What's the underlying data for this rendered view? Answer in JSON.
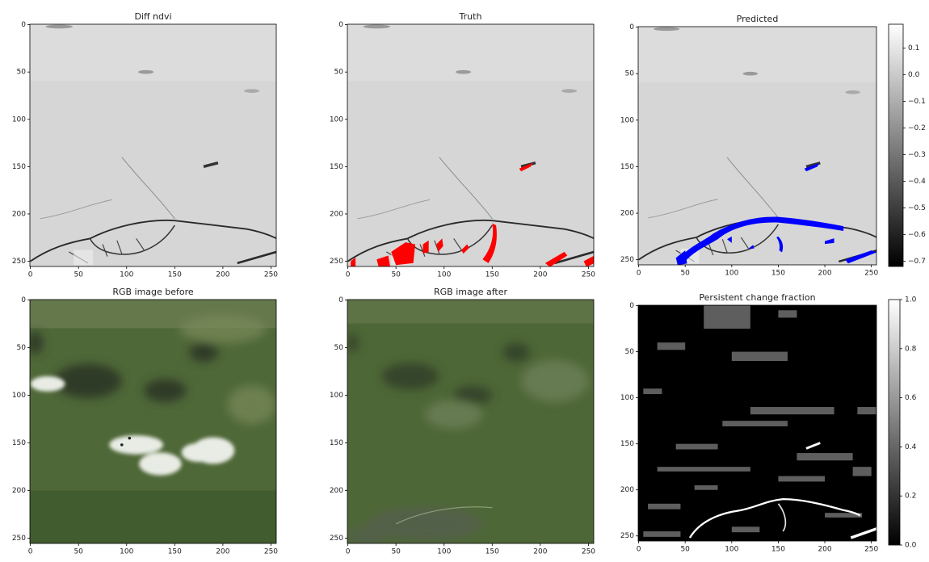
{
  "chart_data": [
    {
      "type": "image",
      "title": "Diff ndvi",
      "xlim": [
        -0.5,
        255.5
      ],
      "ylim": [
        255.5,
        -0.5
      ],
      "xticks": [
        0,
        50,
        100,
        150,
        200,
        250
      ],
      "yticks": [
        0,
        50,
        100,
        150,
        200,
        250
      ]
    },
    {
      "type": "image",
      "title": "Truth",
      "xlim": [
        -0.5,
        255.5
      ],
      "ylim": [
        255.5,
        -0.5
      ],
      "xticks": [
        0,
        50,
        100,
        150,
        200,
        250
      ],
      "yticks": [
        0,
        50,
        100,
        150,
        200,
        250
      ],
      "overlay_color": "#ff0000"
    },
    {
      "type": "image",
      "title": "Predicted",
      "xlim": [
        -0.5,
        255.5
      ],
      "ylim": [
        255.5,
        -0.5
      ],
      "xticks": [
        0,
        50,
        100,
        150,
        200,
        250
      ],
      "yticks": [
        0,
        50,
        100,
        150,
        200,
        250
      ],
      "overlay_color": "#0000ff",
      "colorbar": {
        "cmap": "gray",
        "lim": [
          -0.72,
          0.19
        ],
        "ticks": [
          0.1,
          {
            "value": 0.0,
            "label": "0.0"
          },
          {
            "value": -0.1,
            "label": "−0.1"
          },
          {
            "value": -0.2,
            "label": "−0.2"
          },
          {
            "value": -0.3,
            "label": "−0.3"
          },
          {
            "value": -0.4,
            "label": "−0.4"
          },
          {
            "value": -0.5,
            "label": "−0.5"
          },
          {
            "value": -0.6,
            "label": "−0.6"
          },
          {
            "value": -0.7,
            "label": "−0.7"
          }
        ]
      }
    },
    {
      "type": "image",
      "title": "RGB image before",
      "xlim": [
        -0.5,
        255.5
      ],
      "ylim": [
        255.5,
        -0.5
      ],
      "xticks": [
        0,
        50,
        100,
        150,
        200,
        250
      ],
      "yticks": [
        0,
        50,
        100,
        150,
        200,
        250
      ]
    },
    {
      "type": "image",
      "title": "RGB image after",
      "xlim": [
        -0.5,
        255.5
      ],
      "ylim": [
        255.5,
        -0.5
      ],
      "xticks": [
        0,
        50,
        100,
        150,
        200,
        250
      ],
      "yticks": [
        0,
        50,
        100,
        150,
        200,
        250
      ]
    },
    {
      "type": "image",
      "title": "Persistent change fraction",
      "xlim": [
        -0.5,
        255.5
      ],
      "ylim": [
        255.5,
        -0.5
      ],
      "xticks": [
        0,
        50,
        100,
        150,
        200,
        250
      ],
      "yticks": [
        0,
        50,
        100,
        150,
        200,
        250
      ],
      "colorbar": {
        "cmap": "gray",
        "lim": [
          0,
          1
        ],
        "ticks": [
          {
            "value": 0.0,
            "label": "0.0"
          },
          0.2,
          0.4,
          0.6,
          0.8,
          {
            "value": 1.0,
            "label": "1.0"
          }
        ]
      }
    }
  ]
}
